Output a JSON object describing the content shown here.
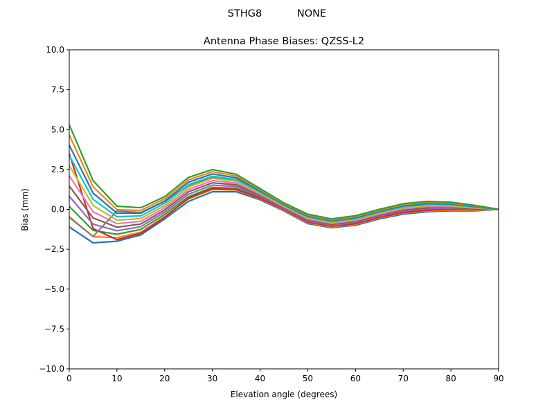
{
  "chart_data": {
    "type": "line",
    "suptitle": "STHG8           NONE",
    "title": "Antenna Phase Biases: QZSS-L2",
    "xlabel": "Elevation angle (degrees)",
    "ylabel": "Bias (mm)",
    "xlim": [
      0,
      90
    ],
    "ylim": [
      -10,
      10
    ],
    "xticks": [
      0,
      10,
      20,
      30,
      40,
      50,
      60,
      70,
      80,
      90
    ],
    "yticks": [
      10.0,
      7.5,
      5.0,
      2.5,
      0.0,
      -2.5,
      -5.0,
      -7.5,
      -10.0
    ],
    "ytick_labels": [
      "10.0",
      "7.5",
      "5.0",
      "2.5",
      "0.0",
      "−2.5",
      "−5.0",
      "−7.5",
      "−10.0"
    ],
    "grid": false,
    "colors": [
      "#1f77b4",
      "#ff7f0e",
      "#2ca02c",
      "#d62728",
      "#9467bd",
      "#8c564b",
      "#e377c2",
      "#7f7f7f",
      "#bcbd22",
      "#17becf"
    ],
    "x": [
      0,
      5,
      10,
      15,
      20,
      25,
      30,
      35,
      40,
      45,
      50,
      55,
      60,
      65,
      70,
      75,
      80,
      85,
      90
    ],
    "series": [
      {
        "values": [
          -1.1,
          -2.1,
          -2.0,
          -1.6,
          -0.6,
          0.5,
          1.1,
          1.1,
          0.6,
          -0.1,
          -0.9,
          -1.15,
          -1.0,
          -0.6,
          -0.3,
          -0.15,
          -0.1,
          -0.1,
          0
        ]
      },
      {
        "values": [
          -0.46,
          -1.71,
          -1.78,
          -1.43,
          -0.46,
          0.65,
          1.24,
          1.21,
          0.67,
          -0.05,
          -0.84,
          -1.1,
          -0.94,
          -0.54,
          -0.24,
          -0.09,
          -0.05,
          -0.07,
          0
        ]
      },
      {
        "values": [
          0.18,
          -1.32,
          -1.56,
          -1.26,
          -0.32,
          0.8,
          1.38,
          1.32,
          0.74,
          0.0,
          -0.78,
          -1.04,
          -0.88,
          -0.48,
          -0.17,
          -0.02,
          0.01,
          -0.03,
          0
        ]
      },
      {
        "values": [
          3.5,
          -1.2,
          -1.9,
          -1.5,
          -0.5,
          0.7,
          1.3,
          1.25,
          0.7,
          0.0,
          -0.8,
          -1.05,
          -0.9,
          -0.5,
          -0.2,
          -0.05,
          0.0,
          0.0,
          0
        ]
      },
      {
        "values": [
          0.82,
          -0.93,
          -1.34,
          -1.09,
          -0.18,
          0.95,
          1.52,
          1.43,
          0.81,
          0.05,
          -0.72,
          -0.99,
          -0.82,
          -0.42,
          -0.11,
          0.05,
          0.07,
          0.01,
          0
        ]
      },
      {
        "values": [
          1.46,
          -0.54,
          -1.12,
          -0.92,
          -0.04,
          1.1,
          1.66,
          1.54,
          0.88,
          0.1,
          -0.66,
          -0.93,
          -0.76,
          -0.36,
          -0.04,
          0.11,
          0.12,
          0.04,
          0
        ]
      },
      {
        "values": [
          2.1,
          -0.15,
          -0.9,
          -0.75,
          0.1,
          1.25,
          1.8,
          1.65,
          0.95,
          0.15,
          -0.6,
          -0.88,
          -0.7,
          -0.3,
          0.03,
          0.18,
          0.18,
          0.08,
          0
        ]
      },
      {
        "values": [
          -0.5,
          -1.7,
          -0.1,
          -0.2,
          0.5,
          1.5,
          2.0,
          1.8,
          1.05,
          0.25,
          -0.5,
          -0.78,
          -0.6,
          -0.2,
          0.15,
          0.3,
          0.3,
          0.15,
          0
        ]
      },
      {
        "values": [
          2.74,
          0.24,
          -0.68,
          -0.58,
          0.24,
          1.4,
          1.94,
          1.76,
          1.02,
          0.2,
          -0.54,
          -0.82,
          -0.64,
          -0.24,
          0.09,
          0.24,
          0.23,
          0.11,
          0
        ]
      },
      {
        "values": [
          3.38,
          0.63,
          -0.46,
          -0.41,
          0.38,
          1.55,
          2.08,
          1.87,
          1.09,
          0.25,
          -0.48,
          -0.77,
          -0.58,
          -0.18,
          0.16,
          0.31,
          0.29,
          0.15,
          0
        ]
      },
      {
        "values": [
          4.02,
          1.02,
          -0.24,
          -0.24,
          0.52,
          1.7,
          2.22,
          1.98,
          1.16,
          0.3,
          -0.42,
          -0.71,
          -0.52,
          -0.12,
          0.22,
          0.37,
          0.34,
          0.18,
          0
        ]
      },
      {
        "values": [
          4.66,
          1.41,
          -0.02,
          -0.07,
          0.66,
          1.85,
          2.36,
          2.09,
          1.23,
          0.35,
          -0.36,
          -0.66,
          -0.46,
          -0.06,
          0.29,
          0.44,
          0.4,
          0.22,
          0
        ]
      },
      {
        "values": [
          5.3,
          1.8,
          0.2,
          0.1,
          0.8,
          2.0,
          2.5,
          2.2,
          1.3,
          0.4,
          -0.3,
          -0.6,
          -0.4,
          0.0,
          0.35,
          0.5,
          0.45,
          0.25,
          0
        ]
      }
    ]
  }
}
